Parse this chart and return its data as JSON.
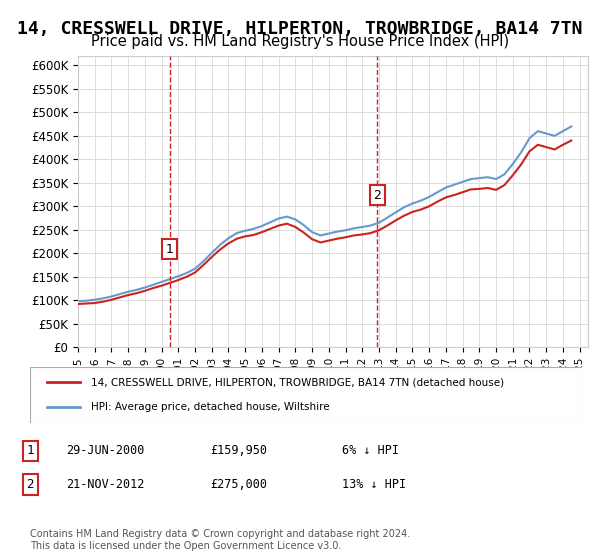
{
  "title": "14, CRESSWELL DRIVE, HILPERTON, TROWBRIDGE, BA14 7TN",
  "subtitle": "Price paid vs. HM Land Registry's House Price Index (HPI)",
  "title_fontsize": 13,
  "subtitle_fontsize": 10.5,
  "ylim": [
    0,
    620000
  ],
  "yticks": [
    0,
    50000,
    100000,
    150000,
    200000,
    250000,
    300000,
    350000,
    400000,
    450000,
    500000,
    550000,
    600000
  ],
  "ytick_labels": [
    "£0",
    "£50K",
    "£100K",
    "£150K",
    "£200K",
    "£250K",
    "£300K",
    "£350K",
    "£400K",
    "£450K",
    "£500K",
    "£550K",
    "£600K"
  ],
  "xlim_start": 1995.0,
  "xlim_end": 2025.5,
  "sale1_x": 2000.49,
  "sale1_y": 159950,
  "sale1_label": "1",
  "sale2_x": 2012.9,
  "sale2_y": 275000,
  "sale2_label": "2",
  "hpi_color": "#6699cc",
  "price_color": "#cc2222",
  "vline_color": "#cc2222",
  "background_color": "#ffffff",
  "grid_color": "#dddddd",
  "legend_label_price": "14, CRESSWELL DRIVE, HILPERTON, TROWBRIDGE, BA14 7TN (detached house)",
  "legend_label_hpi": "HPI: Average price, detached house, Wiltshire",
  "footnote": "Contains HM Land Registry data © Crown copyright and database right 2024.\nThis data is licensed under the Open Government Licence v3.0.",
  "table_rows": [
    {
      "label": "1",
      "date": "29-JUN-2000",
      "price": "£159,950",
      "change": "6% ↓ HPI"
    },
    {
      "label": "2",
      "date": "21-NOV-2012",
      "price": "£275,000",
      "change": "13% ↓ HPI"
    }
  ],
  "hpi_data_x": [
    1995.0,
    1995.5,
    1996.0,
    1996.5,
    1997.0,
    1997.5,
    1998.0,
    1998.5,
    1999.0,
    1999.5,
    2000.0,
    2000.5,
    2001.0,
    2001.5,
    2002.0,
    2002.5,
    2003.0,
    2003.5,
    2004.0,
    2004.5,
    2005.0,
    2005.5,
    2006.0,
    2006.5,
    2007.0,
    2007.5,
    2008.0,
    2008.5,
    2009.0,
    2009.5,
    2010.0,
    2010.5,
    2011.0,
    2011.5,
    2012.0,
    2012.5,
    2013.0,
    2013.5,
    2014.0,
    2014.5,
    2015.0,
    2015.5,
    2016.0,
    2016.5,
    2017.0,
    2017.5,
    2018.0,
    2018.5,
    2019.0,
    2019.5,
    2020.0,
    2020.5,
    2021.0,
    2021.5,
    2022.0,
    2022.5,
    2023.0,
    2023.5,
    2024.0,
    2024.5
  ],
  "hpi_data_y": [
    98000,
    99000,
    101000,
    104000,
    108000,
    113000,
    118000,
    122000,
    127000,
    133000,
    139000,
    145000,
    151000,
    158000,
    167000,
    183000,
    201000,
    218000,
    232000,
    243000,
    248000,
    252000,
    258000,
    266000,
    274000,
    278000,
    272000,
    260000,
    245000,
    238000,
    242000,
    246000,
    249000,
    253000,
    256000,
    259000,
    265000,
    276000,
    287000,
    298000,
    306000,
    312000,
    320000,
    330000,
    340000,
    346000,
    352000,
    358000,
    360000,
    362000,
    358000,
    368000,
    390000,
    415000,
    445000,
    460000,
    455000,
    450000,
    460000,
    470000
  ],
  "price_data_x": [
    1995.0,
    1995.5,
    1996.0,
    1996.5,
    1997.0,
    1997.5,
    1998.0,
    1998.5,
    1999.0,
    1999.5,
    2000.0,
    2000.5,
    2001.0,
    2001.5,
    2002.0,
    2002.5,
    2003.0,
    2003.5,
    2004.0,
    2004.5,
    2005.0,
    2005.5,
    2006.0,
    2006.5,
    2007.0,
    2007.5,
    2008.0,
    2008.5,
    2009.0,
    2009.5,
    2010.0,
    2010.5,
    2011.0,
    2011.5,
    2012.0,
    2012.5,
    2013.0,
    2013.5,
    2014.0,
    2014.5,
    2015.0,
    2015.5,
    2016.0,
    2016.5,
    2017.0,
    2017.5,
    2018.0,
    2018.5,
    2019.0,
    2019.5,
    2020.0,
    2020.5,
    2021.0,
    2021.5,
    2022.0,
    2022.5,
    2023.0,
    2023.5,
    2024.0,
    2024.5
  ],
  "price_data_y": [
    92000,
    93000,
    94000,
    97000,
    101000,
    106000,
    111000,
    115000,
    120000,
    126000,
    131000,
    137000,
    143000,
    150000,
    159000,
    175000,
    192000,
    208000,
    221000,
    231000,
    236000,
    239000,
    245000,
    252000,
    259000,
    263000,
    256000,
    244000,
    230000,
    223000,
    227000,
    231000,
    234000,
    238000,
    240000,
    243000,
    249000,
    259000,
    270000,
    280000,
    288000,
    293000,
    300000,
    310000,
    319000,
    324000,
    330000,
    336000,
    337000,
    339000,
    335000,
    345000,
    366000,
    389000,
    417000,
    431000,
    426000,
    421000,
    431000,
    440000
  ]
}
